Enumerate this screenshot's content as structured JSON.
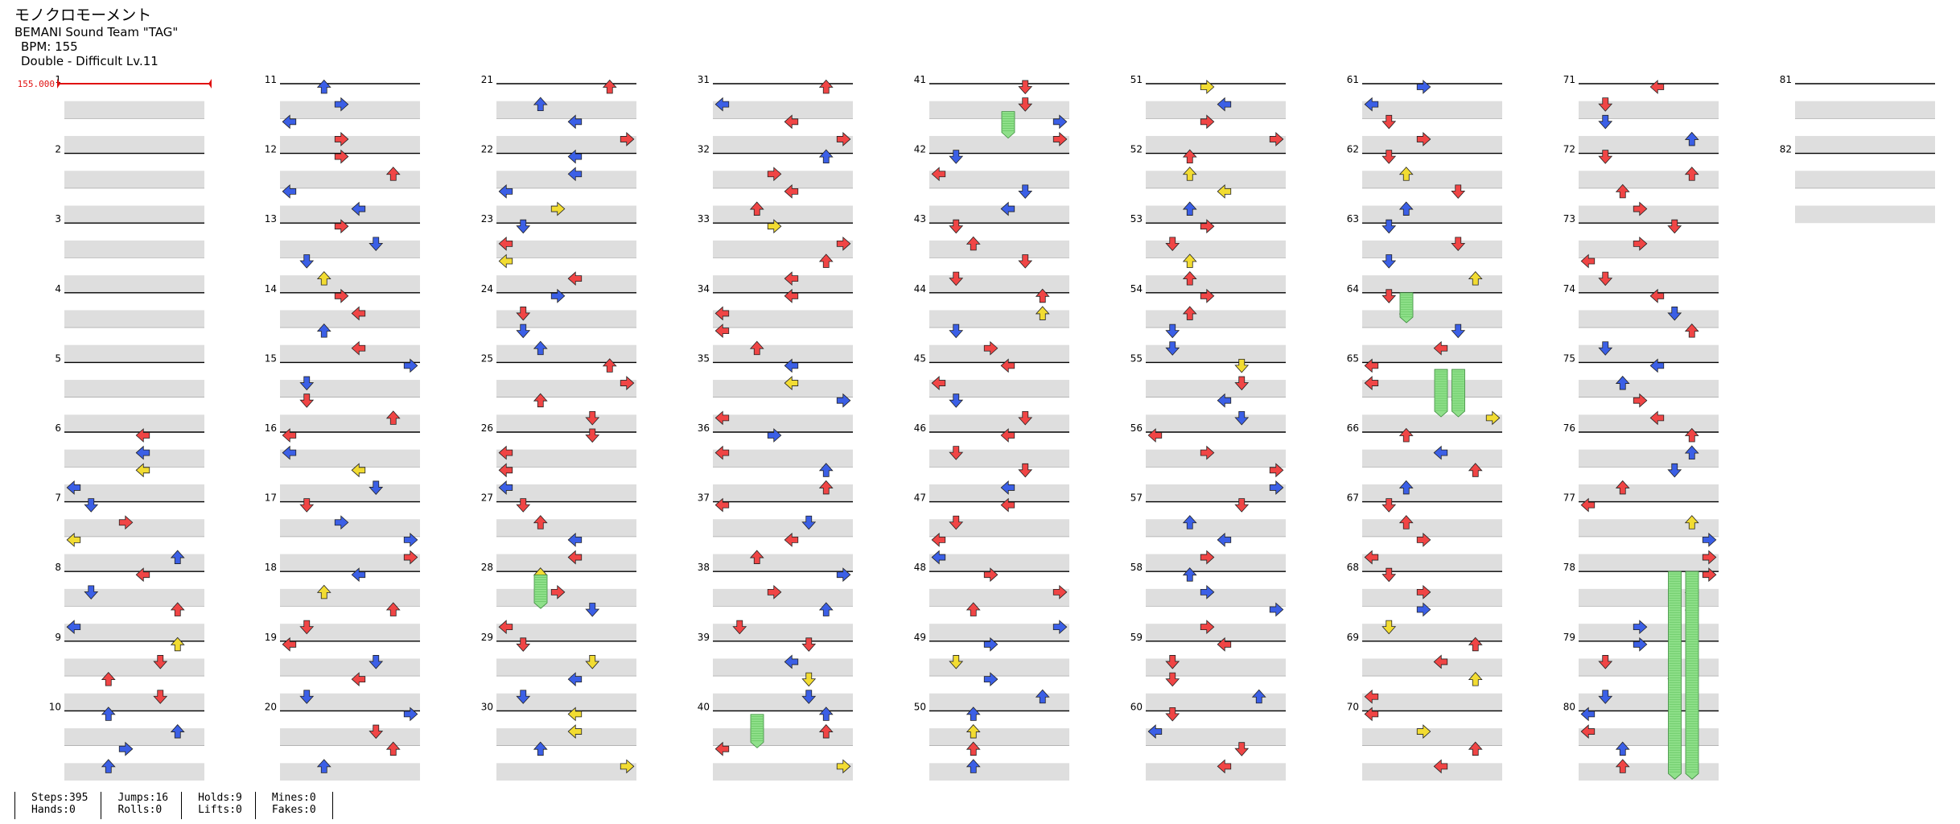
{
  "header": {
    "title": "モノクロモーメント",
    "artist": "BEMANI Sound Team \"TAG\"",
    "bpm": "BPM: 155",
    "difficulty": "Double - Difficult  Lv.11"
  },
  "bpm_marker": "155.000",
  "colors": {
    "red": "#f04545",
    "blue": "#3b5fe6",
    "yellow": "#f2dc32",
    "green": "#8fe08a",
    "stripe": "#dedede",
    "bpm": "#e01010"
  },
  "measures": [
    "1",
    "2",
    "3",
    "4",
    "5",
    "6",
    "7",
    "8",
    "9",
    "10",
    "11",
    "12",
    "13",
    "14",
    "15",
    "16",
    "17",
    "18",
    "19",
    "20",
    "21",
    "22",
    "23",
    "24",
    "25",
    "26",
    "27",
    "28",
    "29",
    "30",
    "31",
    "32",
    "33",
    "34",
    "35",
    "36",
    "37",
    "38",
    "39",
    "40",
    "41",
    "42",
    "43",
    "44",
    "45",
    "46",
    "47",
    "48",
    "49",
    "50",
    "51",
    "52",
    "53",
    "54",
    "55",
    "56",
    "57",
    "58",
    "59",
    "60",
    "61",
    "62",
    "63",
    "64",
    "65",
    "66",
    "67",
    "68",
    "69",
    "70",
    "71",
    "72",
    "73",
    "74",
    "75",
    "76",
    "77",
    "78",
    "79",
    "80",
    "81",
    "82"
  ],
  "stats": {
    "steps": "Steps:395",
    "hands": "Hands:0",
    "jumps": "Jumps:16",
    "rolls": "Rolls:0",
    "holds": "Holds:9",
    "lifts": "Lifts:0",
    "mines": "Mines:0",
    "fakes": "Fakes:0"
  }
}
